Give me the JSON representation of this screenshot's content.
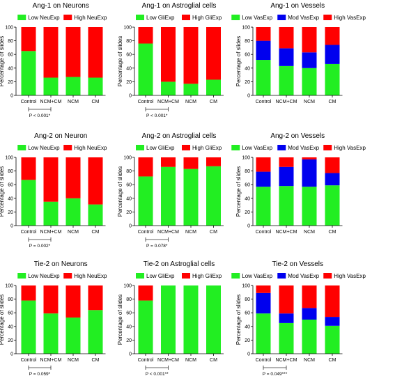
{
  "colors": {
    "low": "#22ee22",
    "mod": "#0000ee",
    "high": "#ff0000"
  },
  "chart_data": [
    {
      "type": "bar",
      "stacked": true,
      "title": "Ang-1 on Neurons",
      "ylabel": "Percentage of slides",
      "ylim": [
        0,
        100
      ],
      "yticks": [
        0,
        20,
        40,
        60,
        80,
        100
      ],
      "categories": [
        "Control",
        "NCM+CM",
        "NCM",
        "CM"
      ],
      "series": [
        {
          "name": "Low NeuExp",
          "color": "low",
          "values": [
            65,
            26,
            27,
            26
          ]
        },
        {
          "name": "High NeuExp",
          "color": "high",
          "values": [
            35,
            74,
            73,
            74
          ]
        }
      ],
      "annotation": "P < 0.001*"
    },
    {
      "type": "bar",
      "stacked": true,
      "title": "Ang-1 on Astroglial cells",
      "ylabel": "Percentage of slides",
      "ylim": [
        0,
        100
      ],
      "yticks": [
        0,
        20,
        40,
        60,
        80,
        100
      ],
      "categories": [
        "Control",
        "NCM+CM",
        "NCM",
        "CM"
      ],
      "series": [
        {
          "name": "Low GliExp",
          "color": "low",
          "values": [
            76,
            20,
            17,
            23
          ]
        },
        {
          "name": "High GliExp",
          "color": "high",
          "values": [
            24,
            80,
            83,
            77
          ]
        }
      ],
      "annotation": "P < 0.001*"
    },
    {
      "type": "bar",
      "stacked": true,
      "title": "Ang-1 on Vessels",
      "ylabel": "Percentage of slides",
      "ylim": [
        0,
        100
      ],
      "yticks": [
        0,
        20,
        40,
        60,
        80,
        100
      ],
      "categories": [
        "Control",
        "NCM+CM",
        "NCM",
        "CM"
      ],
      "series": [
        {
          "name": "Low VasExp",
          "color": "low",
          "values": [
            52,
            43,
            40,
            46
          ]
        },
        {
          "name": "Mod VasExp",
          "color": "mod",
          "values": [
            28,
            26,
            23,
            28
          ]
        },
        {
          "name": "High VasExp",
          "color": "high",
          "values": [
            20,
            31,
            37,
            26
          ]
        }
      ],
      "annotation": null
    },
    {
      "type": "bar",
      "stacked": true,
      "title": "Ang-2 on Neuron",
      "ylabel": "Percentage of slides",
      "ylim": [
        0,
        100
      ],
      "yticks": [
        0,
        20,
        40,
        60,
        80,
        100
      ],
      "categories": [
        "Control",
        "NCM+CM",
        "NCM",
        "CM"
      ],
      "series": [
        {
          "name": "Low NeuExp",
          "color": "low",
          "values": [
            67,
            35,
            40,
            31
          ]
        },
        {
          "name": "High NeuExp",
          "color": "high",
          "values": [
            33,
            65,
            60,
            69
          ]
        }
      ],
      "annotation": "P = 0.002*"
    },
    {
      "type": "bar",
      "stacked": true,
      "title": "Ang-2 on Astroglial cells",
      "ylabel": "Percentage of slides",
      "ylim": [
        0,
        100
      ],
      "yticks": [
        0,
        20,
        40,
        60,
        80,
        100
      ],
      "categories": [
        "Control",
        "NCM+CM",
        "NCM",
        "CM"
      ],
      "series": [
        {
          "name": "Low GliExp",
          "color": "low",
          "values": [
            72,
            86,
            83,
            87
          ]
        },
        {
          "name": "High GliExp",
          "color": "high",
          "values": [
            28,
            14,
            17,
            13
          ]
        }
      ],
      "annotation": "P = 0.078*"
    },
    {
      "type": "bar",
      "stacked": true,
      "title": "Ang-2 on Vessels",
      "ylabel": "Percentage of slides",
      "ylim": [
        0,
        100
      ],
      "yticks": [
        0,
        20,
        40,
        60,
        80,
        100
      ],
      "categories": [
        "Control",
        "NCM+CM",
        "NCM",
        "CM"
      ],
      "series": [
        {
          "name": "Low VasExp",
          "color": "low",
          "values": [
            57,
            58,
            57,
            59
          ]
        },
        {
          "name": "Mod VasExp",
          "color": "mod",
          "values": [
            22,
            28,
            40,
            18
          ]
        },
        {
          "name": "High VasExp",
          "color": "high",
          "values": [
            21,
            14,
            3,
            23
          ]
        }
      ],
      "annotation": null
    },
    {
      "type": "bar",
      "stacked": true,
      "title": "Tie-2 on Neurons",
      "ylabel": "Percentage of slides",
      "ylim": [
        0,
        100
      ],
      "yticks": [
        0,
        20,
        40,
        60,
        80,
        100
      ],
      "categories": [
        "Control",
        "NCM+CM",
        "NCM",
        "CM"
      ],
      "series": [
        {
          "name": "Low NeuExp",
          "color": "low",
          "values": [
            78,
            59,
            53,
            64
          ]
        },
        {
          "name": "High NeuExp",
          "color": "high",
          "values": [
            22,
            41,
            47,
            36
          ]
        }
      ],
      "annotation": "P = 0.059*"
    },
    {
      "type": "bar",
      "stacked": true,
      "title": "Tie-2 on Astroglial cells",
      "ylabel": "Percentage of slides",
      "ylim": [
        0,
        100
      ],
      "yticks": [
        0,
        20,
        40,
        60,
        80,
        100
      ],
      "categories": [
        "Control",
        "NCM+CM",
        "NCM",
        "CM"
      ],
      "series": [
        {
          "name": "Low GliExp",
          "color": "low",
          "values": [
            78,
            100,
            100,
            100
          ]
        },
        {
          "name": "High GliExp",
          "color": "high",
          "values": [
            22,
            0,
            0,
            0
          ]
        }
      ],
      "annotation": "P < 0.001**"
    },
    {
      "type": "bar",
      "stacked": true,
      "title": "Tie-2 on Vessels",
      "ylabel": "Percentage of slides",
      "ylim": [
        0,
        100
      ],
      "yticks": [
        0,
        20,
        40,
        60,
        80,
        100
      ],
      "categories": [
        "Control",
        "NCM+CM",
        "NCM",
        "CM"
      ],
      "series": [
        {
          "name": "Low VasExp",
          "color": "low",
          "values": [
            59,
            45,
            50,
            41
          ]
        },
        {
          "name": "Mod VasExp",
          "color": "mod",
          "values": [
            30,
            14,
            17,
            13
          ]
        },
        {
          "name": "High VasExp",
          "color": "high",
          "values": [
            11,
            41,
            33,
            46
          ]
        }
      ],
      "annotation": "P = 0.049***"
    }
  ]
}
